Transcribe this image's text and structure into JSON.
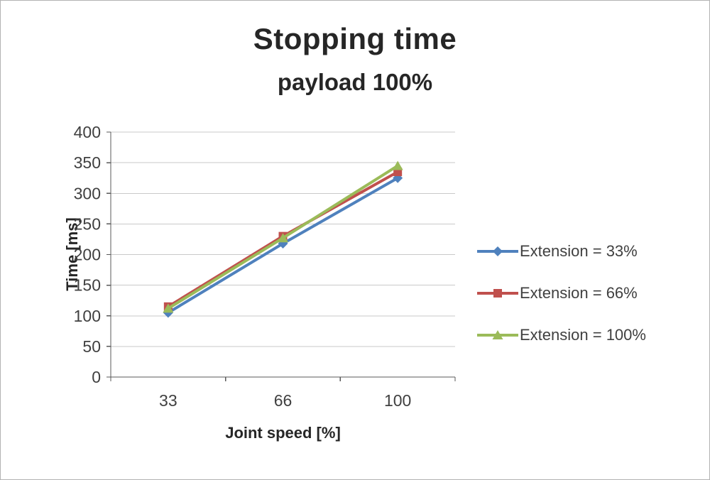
{
  "chart_data": {
    "type": "line",
    "title": "Stopping time",
    "subtitle": "payload 100%",
    "xlabel": "Joint speed [%]",
    "ylabel": "Time [ms]",
    "categories": [
      "33",
      "66",
      "100"
    ],
    "series": [
      {
        "name": "Extension = 33%",
        "color": "#4F81BD",
        "marker": "diamond",
        "values": [
          105,
          218,
          325
        ]
      },
      {
        "name": "Extension = 66%",
        "color": "#C0504D",
        "marker": "square",
        "values": [
          115,
          230,
          335
        ]
      },
      {
        "name": "Extension = 100%",
        "color": "#9BBB59",
        "marker": "triangle",
        "values": [
          112,
          227,
          345
        ]
      }
    ],
    "ylim": [
      0,
      400
    ],
    "yticks": [
      0,
      50,
      100,
      150,
      200,
      250,
      300,
      350,
      400
    ],
    "grid": true,
    "legend_position": "right",
    "colors": {
      "gridline": "#c9c9c9",
      "axis": "#595959",
      "tick_text": "#404040",
      "title_text": "#262626"
    }
  }
}
